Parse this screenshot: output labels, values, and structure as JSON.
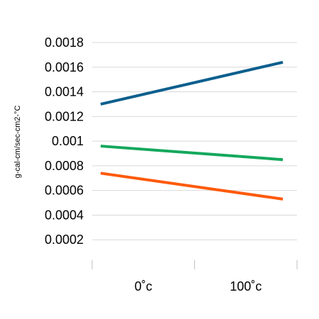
{
  "chart_data": {
    "type": "line",
    "title": "",
    "xlabel": "",
    "ylabel": "g-cal-cm/sec-cm2-°C",
    "categories": [
      "0˚c",
      "100˚c"
    ],
    "yticks": [
      "0.0002",
      "0.0004",
      "0.0006",
      "0.0008",
      "0.001",
      "0.0012",
      "0.0014",
      "0.0016",
      "0.0018"
    ],
    "ylim": [
      0,
      0.0018
    ],
    "grid": true,
    "legend": "none",
    "series": [
      {
        "color": "#0c5f8e",
        "values": [
          0.0013,
          0.00164
        ]
      },
      {
        "color": "#14a85c",
        "values": [
          0.00096,
          0.00085
        ]
      },
      {
        "color": "#fe5a0b",
        "values": [
          0.00074,
          0.00053
        ]
      }
    ]
  }
}
